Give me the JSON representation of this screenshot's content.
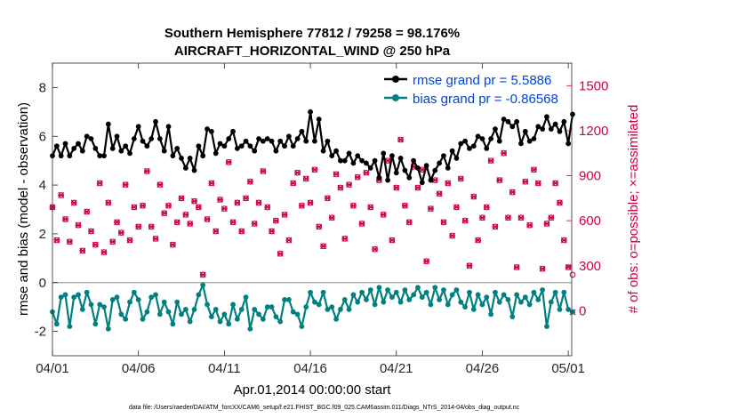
{
  "chart_data": {
    "type": "line",
    "title": "Southern Hemisphere 77812 / 79258 = 98.176%",
    "subtitle": "AIRCRAFT_HORIZONTAL_WIND @ 250 hPa",
    "xlabel": "Apr.01,2014 00:00:00 start",
    "ylabel": "rmse and bias (model - observation)",
    "y2label": "# of obs: o=possible; ×=assimilated",
    "xlim": [
      0,
      30.2
    ],
    "ylim": [
      -3,
      9
    ],
    "y2lim": [
      -300,
      1650
    ],
    "x_ticks": [
      0,
      5,
      10,
      15,
      20,
      25,
      30
    ],
    "x_tick_labels": [
      "04/01",
      "04/06",
      "04/11",
      "04/16",
      "04/21",
      "04/26",
      "05/01"
    ],
    "y_ticks": [
      -2,
      0,
      2,
      4,
      6,
      8
    ],
    "y_tick_labels": [
      "-2",
      "0",
      "2",
      "4",
      "6",
      "8"
    ],
    "y2_ticks": [
      0,
      300,
      600,
      900,
      1200,
      1500
    ],
    "y2_tick_labels": [
      "0",
      "300",
      "600",
      "900",
      "1200",
      "1500"
    ],
    "time_step_days": 0.25,
    "series": [
      {
        "name": "rmse grand pr = 5.5886",
        "axis": "left",
        "color": "#000000",
        "values": [
          5.2,
          5.6,
          5.2,
          5.7,
          5.2,
          5.5,
          5.7,
          5.4,
          6.0,
          5.9,
          5.5,
          5.2,
          5.2,
          6.5,
          5.5,
          6.0,
          5.4,
          5.6,
          5.3,
          5.9,
          6.4,
          5.8,
          5.6,
          5.9,
          6.6,
          5.9,
          5.4,
          6.4,
          5.2,
          5.5,
          5.1,
          4.7,
          5.1,
          4.6,
          5.6,
          5.2,
          6.3,
          6.2,
          5.3,
          5.7,
          5.6,
          5.9,
          6.2,
          5.5,
          5.6,
          5.8,
          5.6,
          5.4,
          5.9,
          5.8,
          5.9,
          5.8,
          5.4,
          5.8,
          5.6,
          6.0,
          5.6,
          5.9,
          6.2,
          5.8,
          7.0,
          5.8,
          6.7,
          5.4,
          5.8,
          5.2,
          5.4,
          5.0,
          5.0,
          5.3,
          4.9,
          5.2,
          5.0,
          4.9,
          4.7,
          5.0,
          4.3,
          5.3,
          4.2,
          5.2,
          4.5,
          5.1,
          4.6,
          4.3,
          5.0,
          4.7,
          4.1,
          4.8,
          4.2,
          4.6,
          4.9,
          5.2,
          4.7,
          5.4,
          5.1,
          5.7,
          5.8,
          5.5,
          5.6,
          6.0,
          5.9,
          5.5,
          5.9,
          6.3,
          5.8,
          6.7,
          6.6,
          6.4,
          6.6,
          5.7,
          6.2,
          5.8,
          5.9,
          6.4,
          6.3,
          6.8,
          6.3,
          6.5,
          6.2,
          6.6,
          5.7,
          6.9
        ]
      },
      {
        "name": "bias grand pr = -0.86568",
        "axis": "left",
        "color": "#008080",
        "values": [
          -1.2,
          -1.7,
          -0.6,
          -0.5,
          -1.8,
          -0.6,
          -0.5,
          -1.1,
          -0.4,
          -0.9,
          -1.7,
          -0.9,
          -1.0,
          -1.9,
          -0.7,
          -0.6,
          -1.3,
          -1.5,
          -0.8,
          -0.4,
          -0.7,
          -1.5,
          -1.2,
          -0.6,
          -0.5,
          -1.3,
          -0.8,
          -1.2,
          -1.7,
          -0.8,
          -1.3,
          -1.1,
          -1.6,
          -1.1,
          -0.5,
          -0.1,
          -0.9,
          -1.4,
          -1.1,
          -1.6,
          -1.3,
          -1.7,
          -0.9,
          -1.5,
          -1.1,
          -0.6,
          -1.9,
          -1.1,
          -1.3,
          -1.5,
          -1.0,
          -1.0,
          -1.4,
          -1.6,
          -0.7,
          -0.7,
          -1.2,
          -1.3,
          -1.8,
          -1.0,
          -0.4,
          -0.8,
          -0.9,
          -0.4,
          -1.1,
          -1.0,
          -1.5,
          -1.1,
          -0.7,
          -1.1,
          -0.5,
          -0.8,
          -0.4,
          -0.7,
          -0.3,
          -0.9,
          -0.2,
          -0.8,
          -0.3,
          -0.6,
          -0.4,
          -0.8,
          -0.3,
          -0.7,
          -0.5,
          -0.2,
          -0.6,
          -0.4,
          -0.9,
          -0.2,
          -0.7,
          -0.3,
          -0.9,
          -0.5,
          -0.3,
          -0.8,
          -1.0,
          -0.4,
          -1.1,
          -0.5,
          -0.9,
          -0.6,
          -1.3,
          -0.4,
          -0.8,
          -0.5,
          -0.7,
          -1.4,
          -0.5,
          -0.8,
          -0.6,
          -0.9,
          -0.4,
          -0.7,
          -0.3,
          -1.8,
          -0.8,
          -0.4,
          -1.1,
          -0.4,
          -1.1,
          -1.2
        ]
      },
      {
        "name": "obs possible",
        "axis": "right",
        "color": "#cc0044",
        "marker": "o",
        "values": [
          690,
          470,
          770,
          610,
          460,
          720,
          570,
          400,
          660,
          530,
          440,
          850,
          390,
          720,
          460,
          590,
          520,
          840,
          470,
          690,
          560,
          700,
          930,
          560,
          480,
          840,
          650,
          700,
          440,
          590,
          750,
          640,
          580,
          730,
          690,
          240,
          610,
          850,
          530,
          740,
          680,
          990,
          590,
          720,
          530,
          750,
          860,
          580,
          720,
          930,
          690,
          530,
          600,
          380,
          640,
          470,
          850,
          920,
          700,
          880,
          720,
          940,
          560,
          430,
          750,
          620,
          910,
          820,
          480,
          840,
          700,
          890,
          580,
          920,
          690,
          410,
          870,
          640,
          1000,
          470,
          820,
          1140,
          700,
          590,
          960,
          820,
          940,
          330,
          680,
          870,
          780,
          590,
          850,
          500,
          690,
          880,
          600,
          300,
          760,
          470,
          620,
          690,
          1000,
          560,
          870,
          1050,
          620,
          790,
          290,
          620,
          860,
          570,
          940,
          850,
          280,
          580,
          620,
          850,
          720,
          470,
          290,
          240
        ]
      },
      {
        "name": "obs assimilated",
        "axis": "right",
        "color": "#cc0044",
        "marker": "x",
        "values": [
          690,
          470,
          770,
          610,
          460,
          720,
          570,
          400,
          660,
          530,
          440,
          850,
          390,
          720,
          460,
          590,
          520,
          840,
          470,
          690,
          560,
          700,
          930,
          560,
          480,
          840,
          650,
          700,
          440,
          590,
          750,
          640,
          580,
          730,
          690,
          240,
          610,
          850,
          530,
          740,
          680,
          990,
          590,
          720,
          530,
          750,
          860,
          580,
          720,
          930,
          690,
          530,
          600,
          380,
          640,
          470,
          850,
          920,
          700,
          880,
          720,
          940,
          560,
          430,
          750,
          620,
          910,
          820,
          480,
          840,
          700,
          890,
          580,
          920,
          690,
          410,
          870,
          640,
          1000,
          470,
          820,
          1140,
          700,
          590,
          960,
          820,
          940,
          330,
          680,
          870,
          780,
          590,
          850,
          500,
          690,
          880,
          600,
          300,
          760,
          470,
          620,
          690,
          1000,
          560,
          870,
          1050,
          620,
          790,
          290,
          620,
          860,
          570,
          940,
          850,
          280,
          580,
          620,
          850,
          720,
          470,
          290,
          -10
        ]
      }
    ]
  },
  "footer": "data file: /Users/raeder/DAI/ATM_forcXX/CAM6_setup/f.e21.FHIST_BGC.f09_025.CAM6assim.011/Diags_NTrS_2014-04/obs_diag_output.nc"
}
